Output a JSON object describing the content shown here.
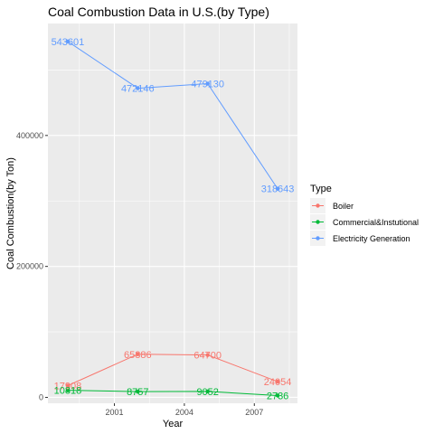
{
  "chart_data": {
    "type": "line",
    "title": "Coal Combustion Data in U.S.(by Type)",
    "xlabel": "Year",
    "ylabel": "Coal Combustion(by Ton)",
    "x": [
      1999,
      2002,
      2005,
      2008
    ],
    "xticks": [
      2001,
      2004,
      2007
    ],
    "xlim": [
      1998.15,
      2008.85
    ],
    "yticks": [
      0,
      200000,
      400000
    ],
    "ylim": [
      -9000,
      571000
    ],
    "grid": true,
    "legend": {
      "title": "Type",
      "position": "right"
    },
    "series": [
      {
        "name": "Boiler",
        "color": "#F8766D",
        "values": [
          17908,
          65886,
          64700,
          24054
        ]
      },
      {
        "name": "Commercial&Instutional",
        "color": "#00BA38",
        "values": [
          10818,
          8757,
          9052,
          2736
        ]
      },
      {
        "name": "Electricity Generation",
        "color": "#619CFF",
        "values": [
          543601,
          472146,
          479130,
          318643
        ]
      }
    ]
  }
}
